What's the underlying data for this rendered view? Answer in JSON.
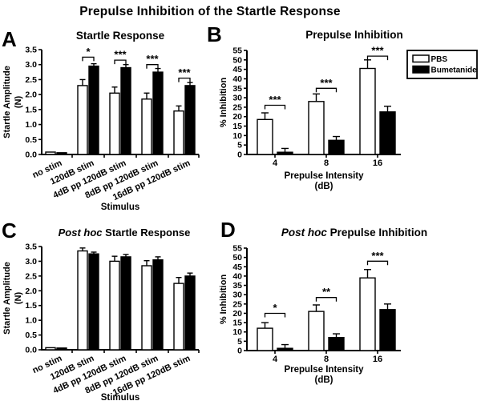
{
  "figure_title": "Prepulse Inhibition of the Startle Response",
  "colors": {
    "foreground": "#000000",
    "background": "#ffffff",
    "pbs_fill": "#ffffff",
    "bumetanide_fill": "#000000"
  },
  "legend": {
    "items": [
      {
        "label": "PBS",
        "color": "#ffffff"
      },
      {
        "label": "Bumetanide",
        "color": "#000000"
      }
    ]
  },
  "chart_data": [
    {
      "panel": "A",
      "type": "bar",
      "title": "Startle Response",
      "title_italic_prefix": "",
      "ylabel": "Startle Amplitude (N)",
      "ylabel_lines": [
        "Startle Amplitude",
        "(N)"
      ],
      "xlabel_lines": [
        "Stimulus"
      ],
      "ylim": [
        0,
        3.5
      ],
      "ytick_step": 0.5,
      "grid": false,
      "legend_position": "none",
      "show_legend": false,
      "categories": [
        "no stim",
        "120dB stim",
        "4dB pp 120dB stim",
        "8dB pp 120dB stim",
        "16dB pp 120dB stim"
      ],
      "series": [
        {
          "name": "PBS",
          "color": "#ffffff",
          "values": [
            0.08,
            2.3,
            2.05,
            1.85,
            1.45
          ],
          "errors": [
            0,
            0.2,
            0.2,
            0.2,
            0.17
          ]
        },
        {
          "name": "Bumetanide",
          "color": "#000000",
          "values": [
            0.06,
            2.95,
            2.9,
            2.75,
            2.3
          ],
          "errors": [
            0,
            0.08,
            0.1,
            0.12,
            0.1
          ]
        }
      ],
      "significance": [
        {
          "category": "120dB stim",
          "label": "*",
          "height": 3.25
        },
        {
          "category": "4dB pp 120dB stim",
          "label": "***",
          "height": 3.15
        },
        {
          "category": "8dB pp 120dB stim",
          "label": "***",
          "height": 3.0
        },
        {
          "category": "16dB pp 120dB stim",
          "label": "***",
          "height": 2.55
        }
      ]
    },
    {
      "panel": "B",
      "type": "bar",
      "title": "Prepulse Inhibition",
      "title_italic_prefix": "",
      "ylabel": "% Inhibition",
      "ylabel_lines": [
        "% Inhibition"
      ],
      "xlabel_lines": [
        "Prepulse Intensity",
        "(dB)"
      ],
      "ylim": [
        0,
        55
      ],
      "ytick_step": 5,
      "grid": false,
      "legend_position": "top-right",
      "show_legend": true,
      "categories": [
        "4",
        "8",
        "16"
      ],
      "series": [
        {
          "name": "PBS",
          "color": "#ffffff",
          "values": [
            18.5,
            28,
            45.5
          ],
          "errors": [
            3.5,
            4,
            4.5
          ]
        },
        {
          "name": "Bumetanide",
          "color": "#000000",
          "values": [
            1.2,
            7.5,
            22.5
          ],
          "errors": [
            2,
            2,
            3
          ]
        }
      ],
      "significance": [
        {
          "category": "4",
          "label": "***",
          "height": 26
        },
        {
          "category": "8",
          "label": "***",
          "height": 35
        },
        {
          "category": "16",
          "label": "***",
          "height": 52
        }
      ]
    },
    {
      "panel": "C",
      "type": "bar",
      "title": "Startle Response",
      "title_italic_prefix": "Post hoc",
      "ylabel": "Startle Amplitude (N)",
      "ylabel_lines": [
        "Startle Amplitude",
        "(N)"
      ],
      "xlabel_lines": [
        "Stimulus"
      ],
      "ylim": [
        0,
        3.5
      ],
      "ytick_step": 0.5,
      "grid": false,
      "legend_position": "none",
      "show_legend": false,
      "categories": [
        "no stim",
        "120dB stim",
        "4dB pp 120dB stim",
        "8dB pp 120dB stim",
        "16dB pp 120dB stim"
      ],
      "series": [
        {
          "name": "PBS",
          "color": "#ffffff",
          "values": [
            0.07,
            3.35,
            3.0,
            2.85,
            2.25
          ],
          "errors": [
            0,
            0.1,
            0.17,
            0.17,
            0.2
          ]
        },
        {
          "name": "Bumetanide",
          "color": "#000000",
          "values": [
            0.06,
            3.25,
            3.15,
            3.05,
            2.5
          ],
          "errors": [
            0,
            0.06,
            0.08,
            0.1,
            0.1
          ]
        }
      ],
      "significance": []
    },
    {
      "panel": "D",
      "type": "bar",
      "title": "Prepulse Inhibition",
      "title_italic_prefix": "Post hoc",
      "ylabel": "% Inhibition",
      "ylabel_lines": [
        "% Inhibition"
      ],
      "xlabel_lines": [
        "Prepulse Intensity",
        "(dB)"
      ],
      "ylim": [
        0,
        55
      ],
      "ytick_step": 5,
      "grid": false,
      "legend_position": "none",
      "show_legend": false,
      "categories": [
        "4",
        "8",
        "16"
      ],
      "series": [
        {
          "name": "PBS",
          "color": "#ffffff",
          "values": [
            12,
            21,
            39
          ],
          "errors": [
            3,
            3.5,
            4.5
          ]
        },
        {
          "name": "Bumetanide",
          "color": "#000000",
          "values": [
            1.2,
            7,
            22
          ],
          "errors": [
            2,
            2,
            3
          ]
        }
      ],
      "significance": [
        {
          "category": "4",
          "label": "*",
          "height": 20
        },
        {
          "category": "8",
          "label": "**",
          "height": 28.5
        },
        {
          "category": "16",
          "label": "***",
          "height": 48
        }
      ]
    }
  ]
}
